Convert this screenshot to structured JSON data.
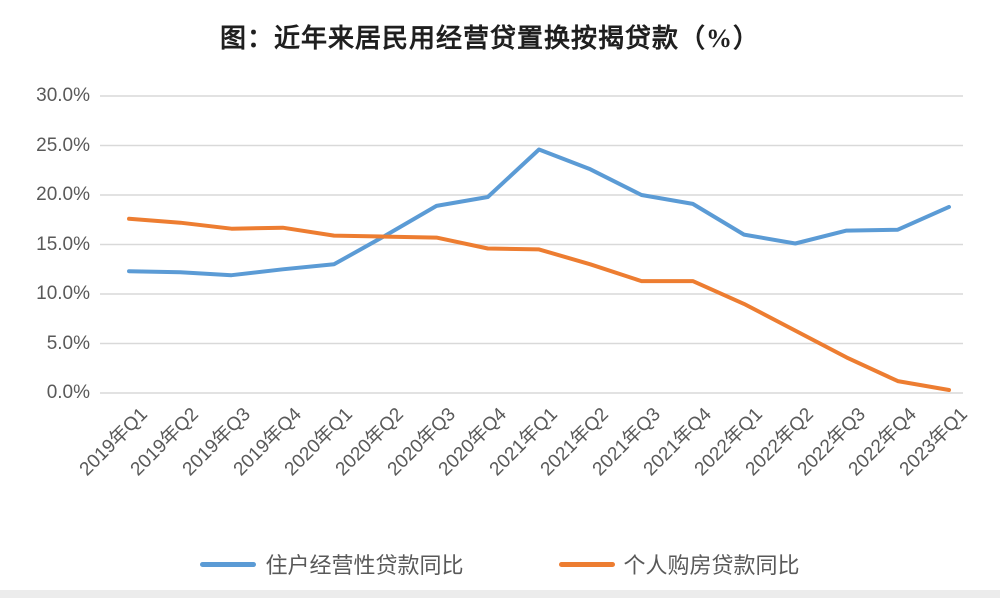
{
  "chart": {
    "title": "图：近年来居民用经营贷置换按揭贷款（%）"
  },
  "chart_data": {
    "type": "line",
    "title": "图：近年来居民用经营贷置换按揭贷款（%）",
    "categories": [
      "2019年Q1",
      "2019年Q2",
      "2019年Q3",
      "2019年Q4",
      "2020年Q1",
      "2020年Q2",
      "2020年Q3",
      "2020年Q4",
      "2021年Q1",
      "2021年Q2",
      "2021年Q3",
      "2021年Q4",
      "2022年Q1",
      "2022年Q2",
      "2022年Q3",
      "2022年Q4",
      "2023年Q1"
    ],
    "series": [
      {
        "name": "住户经营性贷款同比",
        "color": "#5B9BD5",
        "values": [
          12.3,
          12.2,
          11.9,
          12.5,
          13.0,
          15.9,
          18.9,
          19.8,
          24.6,
          22.6,
          20.0,
          19.1,
          16.0,
          15.1,
          16.4,
          16.5,
          18.8
        ]
      },
      {
        "name": "个人购房贷款同比",
        "color": "#ED7D31",
        "values": [
          17.6,
          17.2,
          16.6,
          16.7,
          15.9,
          15.8,
          15.7,
          14.6,
          14.5,
          13.0,
          11.3,
          11.3,
          9.0,
          6.3,
          3.6,
          1.2,
          0.3
        ]
      }
    ],
    "xlabel": "",
    "ylabel": "",
    "ylim": [
      0,
      30
    ],
    "ytick_labels": [
      "0.0%",
      "5.0%",
      "10.0%",
      "15.0%",
      "20.0%",
      "25.0%",
      "30.0%"
    ],
    "grid": true,
    "legend_position": "bottom",
    "colors": {
      "gridline": "#D9D9D9",
      "axis_text": "#595959",
      "title_text": "#1F1F1F"
    }
  }
}
